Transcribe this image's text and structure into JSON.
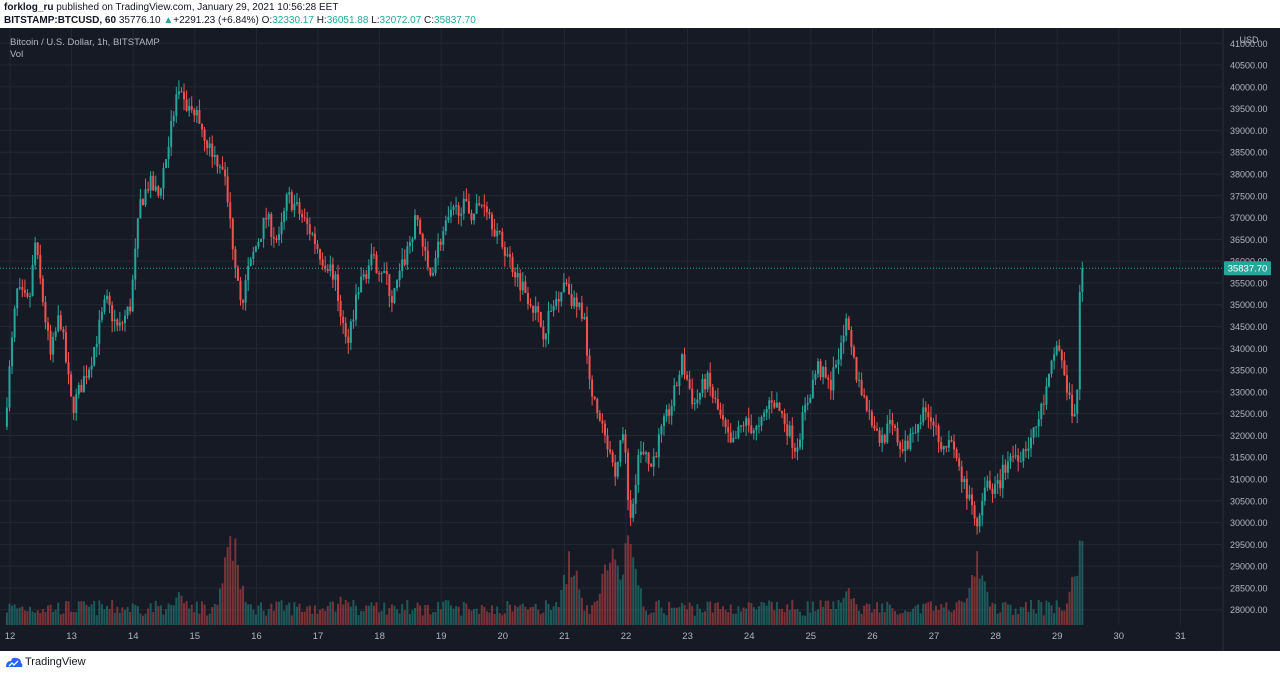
{
  "header": {
    "publisher": "forklog_ru",
    "published_text": "published on TradingView.com, January 29, 2021 10:56:28 EET",
    "symbol": "BITSTAMP:BTCUSD, 60",
    "last": "35776.10",
    "change_arrow": "▲",
    "change": "+2291.23 (+6.84%)",
    "o_label": "O:",
    "o_value": "32330.17",
    "h_label": "H:",
    "h_value": "36051.88",
    "l_label": "L:",
    "l_value": "32072.07",
    "c_label": "C:",
    "c_value": "35837.70"
  },
  "legend": {
    "title": "Bitcoin / U.S. Dollar, 1h, BITSTAMP",
    "volume_label": "Vol"
  },
  "footer": {
    "brand": "TradingView",
    "logo_icon": "tradingview-logo-icon"
  },
  "colors": {
    "background": "#161a25",
    "grid": "#232733",
    "up": "#26a69a",
    "down": "#ef5350",
    "text": "#b2b5be",
    "price_tag": "#26a69a"
  },
  "chart_data": {
    "type": "candlestick",
    "title": "Bitcoin / U.S. Dollar, 1h, BITSTAMP",
    "y_axis_unit": "USD",
    "y_ticks": [
      28000,
      28500,
      29000,
      29500,
      30000,
      30500,
      31000,
      31500,
      32000,
      32500,
      33000,
      33500,
      34000,
      34500,
      35000,
      35500,
      36000,
      36500,
      37000,
      37500,
      38000,
      38500,
      39000,
      39500,
      40000,
      40500,
      41000
    ],
    "y_tick_labels": [
      "28000.00",
      "28500.00",
      "29000.00",
      "29500.00",
      "30000.00",
      "30500.00",
      "31000.00",
      "31500.00",
      "32000.00",
      "32500.00",
      "33000.00",
      "33500.00",
      "34000.00",
      "34500.00",
      "35000.00",
      "35500.00",
      "36000.00",
      "36500.00",
      "37000.00",
      "37500.00",
      "38000.00",
      "38500.00",
      "39000.00",
      "39500.00",
      "40000.00",
      "40500.00",
      "41000.00"
    ],
    "x_ticks": [
      "12",
      "13",
      "14",
      "15",
      "16",
      "17",
      "18",
      "19",
      "20",
      "21",
      "22",
      "23",
      "24",
      "25",
      "26",
      "27",
      "28",
      "29",
      "30",
      "31"
    ],
    "last_price": 35837.7,
    "last_price_label": "35837.70",
    "ylim": [
      27650,
      41350
    ],
    "price_path": [
      {
        "day": 11.95,
        "price": 32200
      },
      {
        "day": 12.15,
        "price": 35300
      },
      {
        "day": 12.35,
        "price": 35000
      },
      {
        "day": 12.45,
        "price": 36400
      },
      {
        "day": 12.7,
        "price": 33800
      },
      {
        "day": 12.85,
        "price": 34800
      },
      {
        "day": 13.05,
        "price": 32600
      },
      {
        "day": 13.35,
        "price": 33700
      },
      {
        "day": 13.6,
        "price": 35100
      },
      {
        "day": 13.8,
        "price": 34400
      },
      {
        "day": 14.0,
        "price": 35000
      },
      {
        "day": 14.15,
        "price": 37300
      },
      {
        "day": 14.3,
        "price": 37800
      },
      {
        "day": 14.45,
        "price": 37500
      },
      {
        "day": 14.6,
        "price": 38600
      },
      {
        "day": 14.75,
        "price": 39800
      },
      {
        "day": 14.95,
        "price": 39500
      },
      {
        "day": 15.1,
        "price": 39300
      },
      {
        "day": 15.3,
        "price": 38500
      },
      {
        "day": 15.5,
        "price": 38200
      },
      {
        "day": 15.65,
        "price": 36500
      },
      {
        "day": 15.8,
        "price": 35100
      },
      {
        "day": 16.0,
        "price": 36200
      },
      {
        "day": 16.2,
        "price": 37000
      },
      {
        "day": 16.4,
        "price": 36400
      },
      {
        "day": 16.55,
        "price": 37500
      },
      {
        "day": 16.7,
        "price": 37200
      },
      {
        "day": 16.95,
        "price": 36600
      },
      {
        "day": 17.1,
        "price": 36100
      },
      {
        "day": 17.3,
        "price": 35700
      },
      {
        "day": 17.5,
        "price": 34100
      },
      {
        "day": 17.7,
        "price": 35400
      },
      {
        "day": 17.9,
        "price": 36000
      },
      {
        "day": 18.1,
        "price": 35800
      },
      {
        "day": 18.25,
        "price": 35100
      },
      {
        "day": 18.5,
        "price": 36300
      },
      {
        "day": 18.65,
        "price": 37000
      },
      {
        "day": 18.85,
        "price": 35600
      },
      {
        "day": 19.0,
        "price": 36400
      },
      {
        "day": 19.15,
        "price": 36900
      },
      {
        "day": 19.35,
        "price": 37300
      },
      {
        "day": 19.55,
        "price": 37100
      },
      {
        "day": 19.75,
        "price": 37400
      },
      {
        "day": 19.95,
        "price": 36600
      },
      {
        "day": 20.1,
        "price": 36200
      },
      {
        "day": 20.3,
        "price": 35600
      },
      {
        "day": 20.5,
        "price": 35100
      },
      {
        "day": 20.7,
        "price": 34400
      },
      {
        "day": 20.9,
        "price": 35100
      },
      {
        "day": 21.05,
        "price": 35600
      },
      {
        "day": 21.2,
        "price": 35000
      },
      {
        "day": 21.35,
        "price": 34800
      },
      {
        "day": 21.5,
        "price": 32800
      },
      {
        "day": 21.7,
        "price": 31900
      },
      {
        "day": 21.85,
        "price": 31100
      },
      {
        "day": 22.0,
        "price": 32200
      },
      {
        "day": 22.1,
        "price": 30000
      },
      {
        "day": 22.25,
        "price": 31600
      },
      {
        "day": 22.45,
        "price": 31300
      },
      {
        "day": 22.6,
        "price": 32000
      },
      {
        "day": 22.8,
        "price": 32800
      },
      {
        "day": 22.95,
        "price": 33700
      },
      {
        "day": 23.15,
        "price": 32700
      },
      {
        "day": 23.35,
        "price": 33300
      },
      {
        "day": 23.55,
        "price": 32500
      },
      {
        "day": 23.75,
        "price": 31700
      },
      {
        "day": 23.95,
        "price": 32300
      },
      {
        "day": 24.2,
        "price": 32100
      },
      {
        "day": 24.4,
        "price": 32900
      },
      {
        "day": 24.6,
        "price": 32400
      },
      {
        "day": 24.8,
        "price": 31700
      },
      {
        "day": 24.95,
        "price": 32600
      },
      {
        "day": 25.15,
        "price": 33600
      },
      {
        "day": 25.35,
        "price": 33100
      },
      {
        "day": 25.6,
        "price": 34600
      },
      {
        "day": 25.8,
        "price": 33300
      },
      {
        "day": 25.95,
        "price": 32700
      },
      {
        "day": 26.15,
        "price": 31900
      },
      {
        "day": 26.35,
        "price": 32200
      },
      {
        "day": 26.55,
        "price": 31600
      },
      {
        "day": 26.75,
        "price": 32300
      },
      {
        "day": 26.95,
        "price": 32600
      },
      {
        "day": 27.15,
        "price": 31900
      },
      {
        "day": 27.35,
        "price": 31700
      },
      {
        "day": 27.55,
        "price": 30800
      },
      {
        "day": 27.75,
        "price": 29800
      },
      {
        "day": 27.9,
        "price": 30900
      },
      {
        "day": 28.05,
        "price": 30700
      },
      {
        "day": 28.25,
        "price": 31500
      },
      {
        "day": 28.45,
        "price": 31600
      },
      {
        "day": 28.65,
        "price": 32000
      },
      {
        "day": 28.85,
        "price": 32900
      },
      {
        "day": 29.05,
        "price": 34200
      },
      {
        "day": 29.2,
        "price": 33000
      },
      {
        "day": 29.35,
        "price": 32300
      },
      {
        "day": 29.42,
        "price": 35838
      }
    ],
    "volume_spikes": [
      {
        "day": 14.75,
        "level": 0.3
      },
      {
        "day": 15.6,
        "level": 0.95
      },
      {
        "day": 17.4,
        "level": 0.3
      },
      {
        "day": 21.1,
        "level": 0.72
      },
      {
        "day": 21.75,
        "level": 0.85
      },
      {
        "day": 22.05,
        "level": 0.95
      },
      {
        "day": 25.6,
        "level": 0.45
      },
      {
        "day": 27.7,
        "level": 0.7
      },
      {
        "day": 29.4,
        "level": 0.95
      }
    ]
  }
}
